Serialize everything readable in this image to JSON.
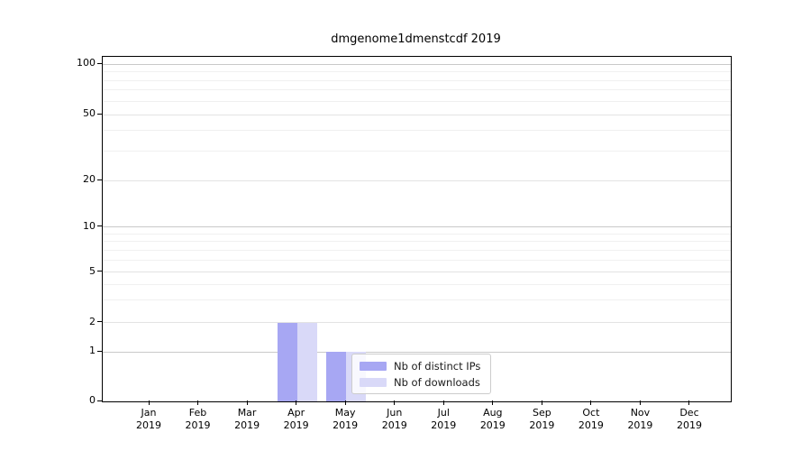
{
  "chart_data": {
    "type": "bar",
    "title": "dmgenome1dmenstcdf 2019",
    "categories": [
      "Jan",
      "Feb",
      "Mar",
      "Apr",
      "May",
      "Jun",
      "Jul",
      "Aug",
      "Sep",
      "Oct",
      "Nov",
      "Dec"
    ],
    "x_tick_year": "2019",
    "series": [
      {
        "name": "Nb of distinct IPs",
        "color": "#a7a7f3",
        "values": [
          0,
          0,
          0,
          2,
          1,
          0,
          0,
          0,
          0,
          0,
          0,
          0
        ]
      },
      {
        "name": "Nb of downloads",
        "color": "#d9d9f8",
        "values": [
          0,
          0,
          0,
          2,
          1,
          0,
          0,
          0,
          0,
          0,
          0,
          0
        ]
      }
    ],
    "y_axis": {
      "scale": "symlog",
      "tick_values": [
        0,
        1,
        2,
        5,
        10,
        20,
        50,
        100
      ],
      "tick_labels": [
        "0",
        "1",
        "2",
        "5",
        "10",
        "20",
        "50",
        "100"
      ],
      "major_gridlines": [
        1,
        10,
        100
      ],
      "labeled_minor_gridlines": [
        2,
        5,
        20,
        50
      ],
      "minor_gridlines": [
        3,
        4,
        6,
        7,
        8,
        9,
        30,
        40,
        60,
        70,
        80,
        90
      ],
      "range": [
        0,
        115
      ]
    },
    "grid": "horizontal",
    "legend": {
      "position": "lower-left-of-center",
      "entries": [
        "Nb of distinct IPs",
        "Nb of downloads"
      ]
    }
  }
}
